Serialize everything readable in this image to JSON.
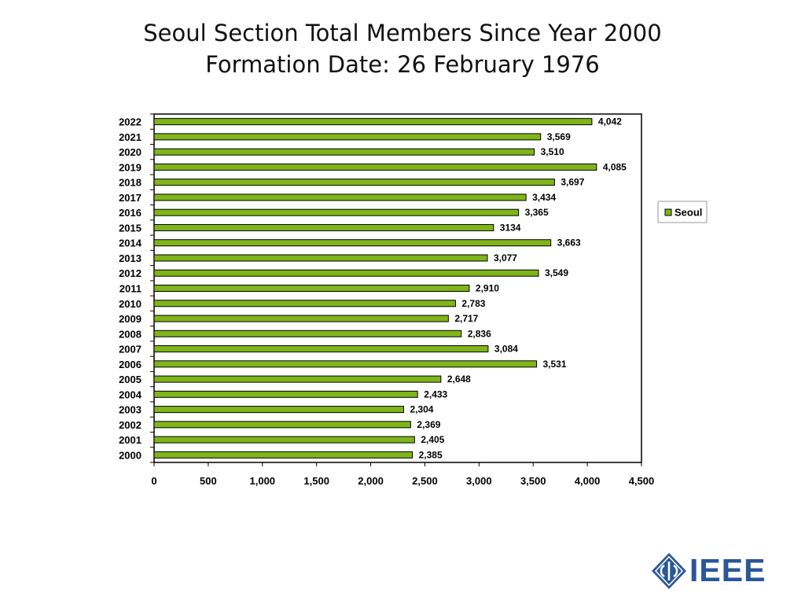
{
  "slide": {
    "title_line1": "Seoul Section Total Members Since Year 2000",
    "title_line2": "Formation Date: 26 February 1976"
  },
  "logo": {
    "text": "IEEE",
    "color": "#2b5797"
  },
  "chart_data": {
    "type": "bar",
    "orientation": "horizontal",
    "categories": [
      "2022",
      "2021",
      "2020",
      "2019",
      "2018",
      "2017",
      "2016",
      "2015",
      "2014",
      "2013",
      "2012",
      "2011",
      "2010",
      "2009",
      "2008",
      "2007",
      "2006",
      "2005",
      "2004",
      "2003",
      "2002",
      "2001",
      "2000"
    ],
    "series": [
      {
        "name": "Seoul",
        "color": "#7fb51a",
        "values": [
          4042,
          3569,
          3510,
          4085,
          3697,
          3434,
          3365,
          3134,
          3663,
          3077,
          3549,
          2910,
          2783,
          2717,
          2836,
          3084,
          3531,
          2648,
          2433,
          2304,
          2369,
          2405,
          2385
        ],
        "labels": [
          "4,042",
          "3,569",
          "3,510",
          "4,085",
          "3,697",
          "3,434",
          "3,365",
          "3134",
          "3,663",
          "3,077",
          "3,549",
          "2,910",
          "2,783",
          "2,717",
          "2,836",
          "3,084",
          "3,531",
          "2,648",
          "2,433",
          "2,304",
          "2,369",
          "2,405",
          "2,385"
        ]
      }
    ],
    "xlim": [
      0,
      4500
    ],
    "xticks": [
      0,
      500,
      1000,
      1500,
      2000,
      2500,
      3000,
      3500,
      4000,
      4500
    ],
    "xtick_labels": [
      "0",
      "500",
      "1,000",
      "1,500",
      "2,000",
      "2,500",
      "3,000",
      "3,500",
      "4,000",
      "4,500"
    ],
    "grid": false,
    "legend_position": "right"
  }
}
